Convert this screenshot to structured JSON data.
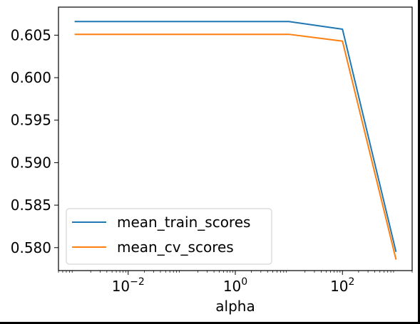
{
  "chart_data": {
    "type": "line",
    "title": "",
    "xlabel": "alpha",
    "ylabel": "",
    "xscale": "log",
    "xlim": [
      0.0005,
      2000
    ],
    "ylim": [
      0.5773,
      0.6083
    ],
    "x": [
      0.001,
      0.01,
      0.1,
      1,
      10,
      100,
      1000
    ],
    "xtick_values": [
      0.01,
      1,
      100
    ],
    "xtick_base": "10",
    "xtick_exponents": [
      "−2",
      "0",
      "2"
    ],
    "ytick_values": [
      0.58,
      0.585,
      0.59,
      0.595,
      0.6,
      0.605
    ],
    "ytick_labels": [
      "0.580",
      "0.585",
      "0.590",
      "0.595",
      "0.600",
      "0.605"
    ],
    "grid": false,
    "legend_position": "lower-left",
    "series": [
      {
        "name": "mean_train_scores",
        "color": "#1f77b4",
        "values": [
          0.6066,
          0.6066,
          0.6066,
          0.6066,
          0.6066,
          0.6057,
          0.5795
        ]
      },
      {
        "name": "mean_cv_scores",
        "color": "#ff7f0e",
        "values": [
          0.6051,
          0.6051,
          0.6051,
          0.6051,
          0.6051,
          0.6043,
          0.5786
        ]
      }
    ]
  }
}
